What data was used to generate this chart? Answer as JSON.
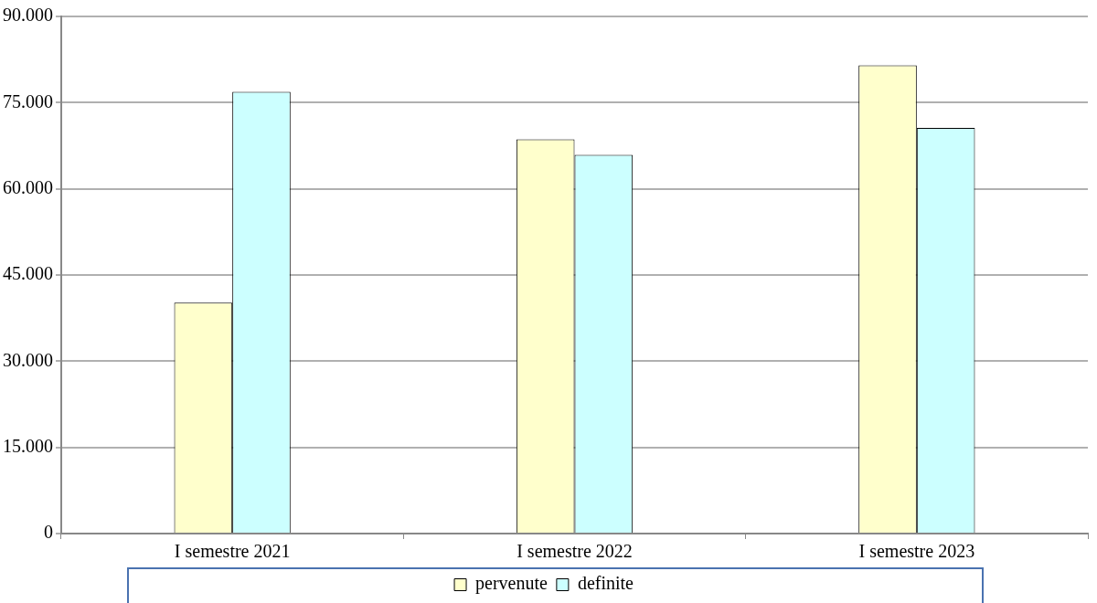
{
  "chart_data": {
    "type": "bar",
    "categories": [
      "I semestre 2021",
      "I semestre 2022",
      "I semestre 2023"
    ],
    "series": [
      {
        "name": "pervenute",
        "color": "#ffffcc",
        "values": [
          40200,
          68600,
          81500
        ]
      },
      {
        "name": "definite",
        "color": "#ccffff",
        "values": [
          76900,
          65900,
          70600
        ]
      }
    ],
    "ylim": [
      0,
      90000
    ],
    "yticks": [
      {
        "value": 0,
        "label": "0"
      },
      {
        "value": 15000,
        "label": "15.000"
      },
      {
        "value": 30000,
        "label": "30.000"
      },
      {
        "value": 45000,
        "label": "45.000"
      },
      {
        "value": 60000,
        "label": "60.000"
      },
      {
        "value": 75000,
        "label": "75.000"
      },
      {
        "value": 90000,
        "label": "90.000"
      }
    ],
    "grid": "y",
    "legend": "bottom"
  }
}
